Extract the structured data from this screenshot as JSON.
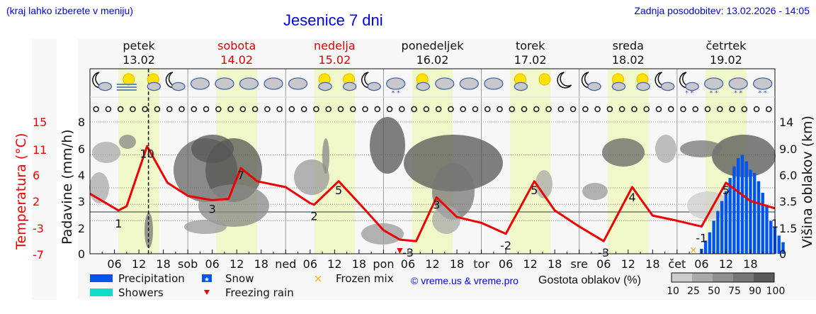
{
  "header": {
    "location_hint": "(kraj lahko izberete v meniju)",
    "title": "Jesenice 7 dni",
    "updated": "Zadnja posodobitev: 13.02.2026 - 14:05"
  },
  "days": [
    {
      "name": "petek",
      "date": "13.02",
      "weekend": false
    },
    {
      "name": "sobota",
      "date": "14.02",
      "weekend": true
    },
    {
      "name": "nedelja",
      "date": "15.02",
      "weekend": true
    },
    {
      "name": "ponedeljek",
      "date": "16.02",
      "weekend": false
    },
    {
      "name": "torek",
      "date": "17.02",
      "weekend": false
    },
    {
      "name": "sreda",
      "date": "18.02",
      "weekend": false
    },
    {
      "name": "četrtek",
      "date": "19.02",
      "weekend": false
    }
  ],
  "axes": {
    "left_temp_label": "Temperatura (°C)",
    "left_temp_ticks": [
      "15",
      "11",
      "6",
      "2",
      "-3",
      "-7"
    ],
    "left_precip_label": "Padavine (mm/h)",
    "left_precip_ticks": [
      "8",
      "6",
      "4",
      "3",
      "2",
      "0"
    ],
    "right_label": "Višina oblakov (km)",
    "right_ticks": [
      "14",
      "9.0",
      "6.0",
      "3.5",
      "1.5",
      "0"
    ],
    "x_ticks": [
      "06",
      "12",
      "18",
      "sob",
      "06",
      "12",
      "18",
      "ned",
      "06",
      "12",
      "18",
      "pon",
      "06",
      "12",
      "18",
      "tor",
      "06",
      "12",
      "18",
      "sre",
      "06",
      "12",
      "18",
      "čet",
      "06",
      "12",
      "18"
    ]
  },
  "weather_icons": [
    "moon-cloud",
    "sun-fog",
    "sun-cloud",
    "moon-cloud",
    "cloud",
    "cloud",
    "cloud",
    "cloud",
    "cloud",
    "sun-cloud",
    "sun-cloud",
    "moon-cloud",
    "cloud-snow",
    "sun-cloud",
    "cloud",
    "cloud",
    "cloud",
    "sun-cloud",
    "sun",
    "moon",
    "moon-cloud",
    "sun-cloud",
    "sun-cloud",
    "moon-cloud",
    "moon-cloud-snow",
    "cloud-snow",
    "cloud-snow",
    "cloud-snow"
  ],
  "legend": {
    "precipitation": "Precipitation",
    "showers": "Showers",
    "snow": "Snow",
    "freezing_rain": "Freezing rain",
    "frozen_mix": "Frozen mix",
    "credit": "© vreme.us & vreme.pro",
    "cloud_density_label": "Gostota oblakov (%)",
    "cloud_density_ticks": [
      "10",
      "25",
      "50",
      "75",
      "90",
      "100"
    ]
  },
  "colors": {
    "precipitation": "#0055ee",
    "showers": "#11ddcc",
    "snow": "#0055ee",
    "freezing_rain": "#ee0000",
    "frozen_mix": "#ffaa00",
    "temperature": "#ee0000",
    "daylight": "#f0f7c8",
    "weekend": "#dd0000",
    "link": "#0000ee"
  },
  "chart_data": {
    "type": "line",
    "title": "Jesenice 7 dni",
    "xlabel": "",
    "ylabel": "Temperatura (°C)",
    "x_range": [
      "13.02 00:00",
      "19.02 24:00"
    ],
    "temperature": {
      "unit": "°C",
      "extrema_labels": [
        {
          "x_hour": 7,
          "value": 1
        },
        {
          "x_hour": 14,
          "value": 10
        },
        {
          "x_hour": 30,
          "value": 3
        },
        {
          "x_hour": 37,
          "value": 7
        },
        {
          "x_hour": 55,
          "value": 2
        },
        {
          "x_hour": 61,
          "value": 5
        },
        {
          "x_hour": 78,
          "value": -3
        },
        {
          "x_hour": 85,
          "value": 3
        },
        {
          "x_hour": 102,
          "value": -2
        },
        {
          "x_hour": 109,
          "value": 5
        },
        {
          "x_hour": 126,
          "value": -3
        },
        {
          "x_hour": 133,
          "value": 4
        },
        {
          "x_hour": 150,
          "value": -1
        },
        {
          "x_hour": 156,
          "value": 5
        },
        {
          "x_hour": 168,
          "value": 1
        }
      ]
    },
    "precipitation": {
      "unit": "mm/h",
      "series": "Precipitation",
      "start_hour": 150,
      "values_mm_h": [
        0.3,
        0.8,
        1.3,
        2.0,
        2.6,
        3.2,
        3.8,
        4.6,
        5.3,
        5.8,
        6.0,
        5.6,
        5.1,
        4.9,
        4.4,
        3.7,
        2.9,
        2.0,
        1.6,
        1.1,
        0.7
      ]
    },
    "markers": [
      {
        "type": "freezing_rain",
        "x_hour": 76
      },
      {
        "type": "frozen_mix",
        "x_hour": 148
      }
    ],
    "ylim_precip": [
      0,
      8
    ],
    "ylim_cloud_km": [
      0,
      14
    ],
    "grid": true,
    "current_time_hour": 14
  }
}
